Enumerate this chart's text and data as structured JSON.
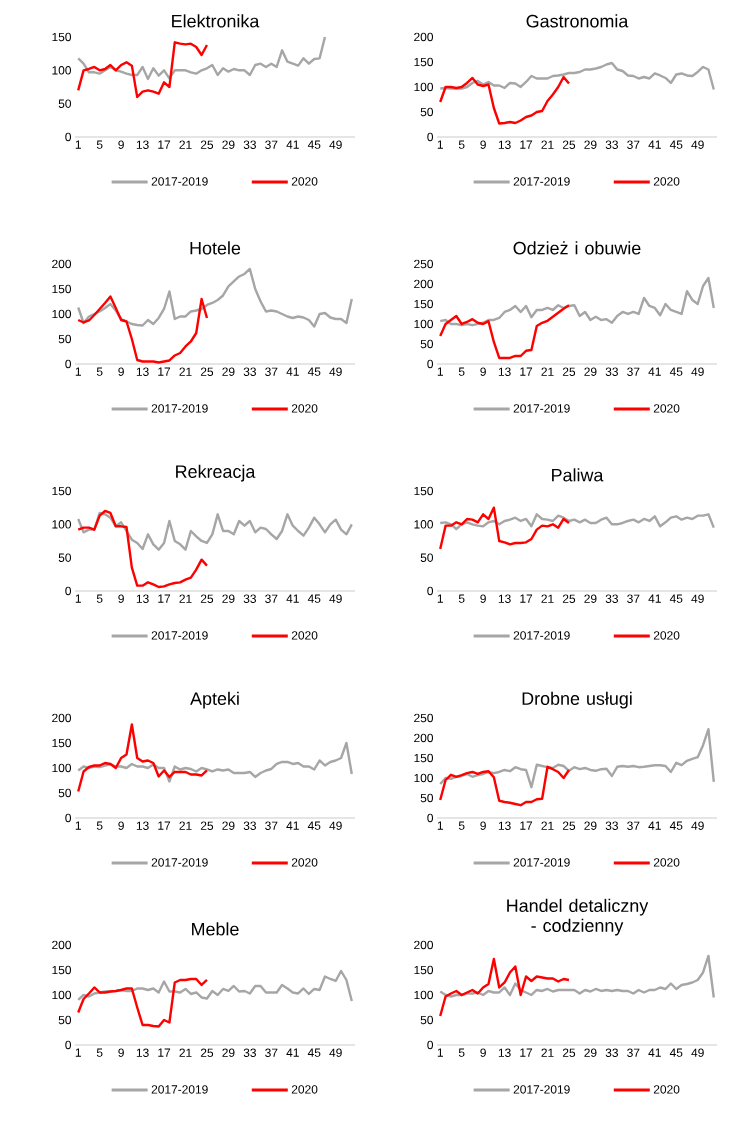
{
  "chart_data": [
    {
      "type": "line",
      "title": "Elektronika",
      "categories": [
        "1",
        null,
        null,
        null,
        "5",
        null,
        null,
        null,
        "9",
        null,
        null,
        null,
        "13",
        null,
        null,
        null,
        "17",
        null,
        null,
        null,
        "21",
        null,
        null,
        null,
        "25",
        null,
        null,
        null,
        "29",
        null,
        null,
        null,
        "33",
        null,
        null,
        null,
        "37",
        null,
        null,
        null,
        "41",
        null,
        null,
        null,
        "45",
        null,
        null,
        null,
        "49",
        null,
        null,
        null
      ],
      "ylim": [
        0,
        150
      ],
      "yticks": [
        0,
        50,
        100,
        150
      ],
      "legend": "bottom",
      "series": [
        {
          "name": "2017-2019",
          "color": "#a6a6a6",
          "values": [
            118,
            110,
            97,
            97,
            95,
            100,
            105,
            100,
            98,
            95,
            93,
            93,
            105,
            87,
            103,
            92,
            100,
            88,
            100,
            100,
            100,
            97,
            95,
            100,
            103,
            108,
            93,
            103,
            98,
            102,
            100,
            100,
            93,
            108,
            110,
            105,
            110,
            105,
            130,
            113,
            110,
            107,
            118,
            110,
            117,
            118,
            150,
            null,
            null,
            null,
            null,
            null
          ]
        },
        {
          "name": "2020",
          "color": "#ff0000",
          "values": [
            70,
            100,
            102,
            105,
            100,
            102,
            108,
            100,
            108,
            112,
            107,
            60,
            68,
            70,
            68,
            65,
            82,
            75,
            142,
            140,
            139,
            140,
            135,
            123,
            138,
            null,
            null,
            null,
            null,
            null,
            null,
            null,
            null,
            null,
            null,
            null,
            null,
            null,
            null,
            null,
            null,
            null,
            null,
            null,
            null,
            null,
            null,
            null,
            null,
            null,
            null,
            null
          ]
        }
      ]
    },
    {
      "type": "line",
      "title": "Gastronomia",
      "categories": [
        "1",
        null,
        null,
        null,
        "5",
        null,
        null,
        null,
        "9",
        null,
        null,
        null,
        "13",
        null,
        null,
        null,
        "17",
        null,
        null,
        null,
        "21",
        null,
        null,
        null,
        "25",
        null,
        null,
        null,
        "29",
        null,
        null,
        null,
        "33",
        null,
        null,
        null,
        "37",
        null,
        null,
        null,
        "41",
        null,
        null,
        null,
        "45",
        null,
        null,
        null,
        "49",
        null,
        null,
        null
      ],
      "ylim": [
        0,
        200
      ],
      "yticks": [
        0,
        50,
        100,
        150,
        200
      ],
      "legend": "bottom",
      "series": [
        {
          "name": "2017-2019",
          "color": "#a6a6a6",
          "values": [
            97,
            98,
            97,
            97,
            97,
            100,
            108,
            112,
            105,
            110,
            103,
            103,
            98,
            108,
            107,
            100,
            110,
            122,
            117,
            117,
            117,
            122,
            123,
            125,
            128,
            128,
            130,
            135,
            135,
            137,
            140,
            145,
            148,
            135,
            132,
            123,
            122,
            117,
            120,
            117,
            127,
            123,
            118,
            108,
            125,
            127,
            123,
            122,
            130,
            140,
            135,
            95
          ]
        },
        {
          "name": "2020",
          "color": "#ff0000",
          "values": [
            70,
            100,
            100,
            98,
            100,
            108,
            118,
            105,
            102,
            105,
            58,
            27,
            28,
            30,
            28,
            33,
            40,
            43,
            50,
            52,
            72,
            85,
            100,
            120,
            107,
            null,
            null,
            null,
            null,
            null,
            null,
            null,
            null,
            null,
            null,
            null,
            null,
            null,
            null,
            null,
            null,
            null,
            null,
            null,
            null,
            null,
            null,
            null,
            null,
            null,
            null,
            null
          ]
        }
      ]
    },
    {
      "type": "line",
      "title": "Hotele",
      "categories": [
        "1",
        null,
        null,
        null,
        "5",
        null,
        null,
        null,
        "9",
        null,
        null,
        null,
        "13",
        null,
        null,
        null,
        "17",
        null,
        null,
        null,
        "21",
        null,
        null,
        null,
        "25",
        null,
        null,
        null,
        "29",
        null,
        null,
        null,
        "33",
        null,
        null,
        null,
        "37",
        null,
        null,
        null,
        "41",
        null,
        null,
        null,
        "45",
        null,
        null,
        null,
        "49",
        null,
        null,
        null
      ],
      "ylim": [
        0,
        200
      ],
      "yticks": [
        0,
        50,
        100,
        150,
        200
      ],
      "legend": "bottom",
      "series": [
        {
          "name": "2017-2019",
          "color": "#a6a6a6",
          "values": [
            113,
            82,
            95,
            100,
            105,
            112,
            120,
            107,
            90,
            85,
            80,
            78,
            77,
            88,
            80,
            92,
            110,
            145,
            90,
            95,
            95,
            105,
            107,
            110,
            118,
            122,
            128,
            137,
            155,
            165,
            175,
            180,
            190,
            150,
            125,
            105,
            107,
            105,
            100,
            95,
            92,
            95,
            93,
            88,
            75,
            100,
            102,
            93,
            90,
            90,
            82,
            130
          ]
        },
        {
          "name": "2020",
          "color": "#ff0000",
          "values": [
            88,
            83,
            87,
            98,
            110,
            122,
            135,
            112,
            88,
            85,
            50,
            8,
            5,
            5,
            5,
            3,
            5,
            7,
            17,
            22,
            35,
            45,
            62,
            130,
            92,
            null,
            null,
            null,
            null,
            null,
            null,
            null,
            null,
            null,
            null,
            null,
            null,
            null,
            null,
            null,
            null,
            null,
            null,
            null,
            null,
            null,
            null,
            null,
            null,
            null,
            null,
            null
          ]
        }
      ]
    },
    {
      "type": "line",
      "title": "Odzież i obuwie",
      "categories": [
        "1",
        null,
        null,
        null,
        "5",
        null,
        null,
        null,
        "9",
        null,
        null,
        null,
        "13",
        null,
        null,
        null,
        "17",
        null,
        null,
        null,
        "21",
        null,
        null,
        null,
        "25",
        null,
        null,
        null,
        "29",
        null,
        null,
        null,
        "33",
        null,
        null,
        null,
        "37",
        null,
        null,
        null,
        "41",
        null,
        null,
        null,
        "45",
        null,
        null,
        null,
        "49",
        null,
        null,
        null
      ],
      "ylim": [
        0,
        250
      ],
      "yticks": [
        0,
        50,
        100,
        150,
        200,
        250
      ],
      "legend": "bottom",
      "series": [
        {
          "name": "2017-2019",
          "color": "#a6a6a6",
          "values": [
            107,
            110,
            100,
            100,
            97,
            100,
            97,
            100,
            103,
            110,
            110,
            115,
            130,
            135,
            145,
            130,
            145,
            117,
            135,
            135,
            140,
            135,
            147,
            140,
            145,
            147,
            120,
            130,
            110,
            118,
            110,
            112,
            103,
            120,
            130,
            125,
            130,
            125,
            165,
            145,
            140,
            122,
            150,
            135,
            130,
            125,
            182,
            160,
            150,
            195,
            215,
            140
          ]
        },
        {
          "name": "2020",
          "color": "#ff0000",
          "values": [
            70,
            100,
            110,
            120,
            100,
            105,
            112,
            103,
            100,
            107,
            55,
            15,
            15,
            15,
            20,
            20,
            33,
            35,
            95,
            103,
            108,
            118,
            128,
            138,
            147,
            null,
            null,
            null,
            null,
            null,
            null,
            null,
            null,
            null,
            null,
            null,
            null,
            null,
            null,
            null,
            null,
            null,
            null,
            null,
            null,
            null,
            null,
            null,
            null,
            null,
            null,
            null
          ]
        }
      ]
    },
    {
      "type": "line",
      "title": "Rekreacja",
      "categories": [
        "1",
        null,
        null,
        null,
        "5",
        null,
        null,
        null,
        "9",
        null,
        null,
        null,
        "13",
        null,
        null,
        null,
        "17",
        null,
        null,
        null,
        "21",
        null,
        null,
        null,
        "25",
        null,
        null,
        null,
        "29",
        null,
        null,
        null,
        "33",
        null,
        null,
        null,
        "37",
        null,
        null,
        null,
        "41",
        null,
        null,
        null,
        "45",
        null,
        null,
        null,
        "49",
        null,
        null,
        null
      ],
      "ylim": [
        0,
        150
      ],
      "yticks": [
        0,
        50,
        100,
        150
      ],
      "legend": "bottom",
      "series": [
        {
          "name": "2017-2019",
          "color": "#a6a6a6",
          "values": [
            108,
            88,
            92,
            92,
            117,
            115,
            110,
            97,
            103,
            90,
            77,
            72,
            63,
            85,
            70,
            62,
            72,
            105,
            75,
            70,
            62,
            90,
            82,
            75,
            72,
            85,
            115,
            90,
            90,
            85,
            105,
            98,
            105,
            88,
            95,
            93,
            85,
            78,
            90,
            115,
            98,
            90,
            83,
            95,
            110,
            100,
            88,
            100,
            107,
            92,
            85,
            100
          ]
        },
        {
          "name": "2020",
          "color": "#ff0000",
          "values": [
            92,
            95,
            95,
            92,
            113,
            120,
            117,
            97,
            97,
            96,
            35,
            8,
            8,
            13,
            10,
            6,
            7,
            10,
            12,
            13,
            17,
            20,
            32,
            47,
            38,
            null,
            null,
            null,
            null,
            null,
            null,
            null,
            null,
            null,
            null,
            null,
            null,
            null,
            null,
            null,
            null,
            null,
            null,
            null,
            null,
            null,
            null,
            null,
            null,
            null,
            null,
            null
          ]
        }
      ]
    },
    {
      "type": "line",
      "title": "Paliwa",
      "categories": [
        "1",
        null,
        null,
        null,
        "5",
        null,
        null,
        null,
        "9",
        null,
        null,
        null,
        "13",
        null,
        null,
        null,
        "17",
        null,
        null,
        null,
        "21",
        null,
        null,
        null,
        "25",
        null,
        null,
        null,
        "29",
        null,
        null,
        null,
        "33",
        null,
        null,
        null,
        "37",
        null,
        null,
        null,
        "41",
        null,
        null,
        null,
        "45",
        null,
        null,
        null,
        "49",
        null,
        null,
        null
      ],
      "ylim": [
        0,
        150
      ],
      "yticks": [
        0,
        50,
        100,
        150
      ],
      "legend": "bottom",
      "series": [
        {
          "name": "2017-2019",
          "color": "#a6a6a6",
          "values": [
            102,
            103,
            100,
            93,
            100,
            103,
            100,
            98,
            97,
            103,
            105,
            100,
            105,
            107,
            110,
            105,
            108,
            97,
            115,
            108,
            107,
            105,
            113,
            110,
            105,
            107,
            103,
            107,
            102,
            102,
            107,
            110,
            100,
            100,
            102,
            105,
            107,
            103,
            108,
            105,
            112,
            97,
            103,
            110,
            112,
            107,
            110,
            108,
            113,
            113,
            115,
            95
          ]
        },
        {
          "name": "2020",
          "color": "#ff0000",
          "values": [
            63,
            98,
            98,
            103,
            100,
            108,
            107,
            103,
            115,
            108,
            125,
            75,
            73,
            70,
            72,
            72,
            73,
            78,
            92,
            98,
            97,
            100,
            95,
            108,
            102,
            null,
            null,
            null,
            null,
            null,
            null,
            null,
            null,
            null,
            null,
            null,
            null,
            null,
            null,
            null,
            null,
            null,
            null,
            null,
            null,
            null,
            null,
            null,
            null,
            null,
            null,
            null
          ]
        }
      ]
    },
    {
      "type": "line",
      "title": "Apteki",
      "categories": [
        "1",
        null,
        null,
        null,
        "5",
        null,
        null,
        null,
        "9",
        null,
        null,
        null,
        "13",
        null,
        null,
        null,
        "17",
        null,
        null,
        null,
        "21",
        null,
        null,
        null,
        "25",
        null,
        null,
        null,
        "29",
        null,
        null,
        null,
        "33",
        null,
        null,
        null,
        "37",
        null,
        null,
        null,
        "41",
        null,
        null,
        null,
        "45",
        null,
        null,
        null,
        "49",
        null,
        null,
        null
      ],
      "ylim": [
        0,
        200
      ],
      "yticks": [
        0,
        50,
        100,
        150,
        200
      ],
      "legend": "bottom",
      "series": [
        {
          "name": "2017-2019",
          "color": "#a6a6a6",
          "values": [
            95,
            103,
            100,
            103,
            102,
            105,
            108,
            103,
            103,
            100,
            108,
            103,
            103,
            100,
            107,
            100,
            100,
            73,
            103,
            97,
            100,
            98,
            93,
            100,
            97,
            93,
            97,
            95,
            97,
            90,
            90,
            90,
            92,
            82,
            90,
            95,
            98,
            108,
            112,
            112,
            108,
            110,
            103,
            103,
            97,
            115,
            105,
            112,
            115,
            120,
            150,
            88
          ]
        },
        {
          "name": "2020",
          "color": "#ff0000",
          "values": [
            53,
            93,
            102,
            105,
            105,
            110,
            108,
            100,
            120,
            127,
            187,
            120,
            113,
            115,
            110,
            83,
            95,
            82,
            92,
            92,
            92,
            87,
            87,
            85,
            95,
            null,
            null,
            null,
            null,
            null,
            null,
            null,
            null,
            null,
            null,
            null,
            null,
            null,
            null,
            null,
            null,
            null,
            null,
            null,
            null,
            null,
            null,
            null,
            null,
            null,
            null,
            null
          ]
        }
      ]
    },
    {
      "type": "line",
      "title": "Drobne usługi",
      "categories": [
        "1",
        null,
        null,
        null,
        "5",
        null,
        null,
        null,
        "9",
        null,
        null,
        null,
        "13",
        null,
        null,
        null,
        "17",
        null,
        null,
        null,
        "21",
        null,
        null,
        null,
        "25",
        null,
        null,
        null,
        "29",
        null,
        null,
        null,
        "33",
        null,
        null,
        null,
        "37",
        null,
        null,
        null,
        "41",
        null,
        null,
        null,
        "45",
        null,
        null,
        null,
        "49",
        null,
        null,
        null
      ],
      "ylim": [
        0,
        250
      ],
      "yticks": [
        0,
        50,
        100,
        150,
        200,
        250
      ],
      "legend": "bottom",
      "series": [
        {
          "name": "2017-2019",
          "color": "#a6a6a6",
          "values": [
            85,
            100,
            98,
            103,
            105,
            110,
            103,
            107,
            110,
            115,
            112,
            115,
            120,
            117,
            127,
            122,
            120,
            77,
            133,
            130,
            127,
            125,
            133,
            130,
            118,
            127,
            122,
            125,
            120,
            118,
            122,
            123,
            105,
            128,
            130,
            128,
            130,
            127,
            128,
            130,
            132,
            132,
            130,
            115,
            138,
            132,
            143,
            148,
            152,
            182,
            222,
            90
          ]
        },
        {
          "name": "2020",
          "color": "#ff0000",
          "values": [
            45,
            95,
            108,
            103,
            107,
            112,
            115,
            110,
            115,
            117,
            102,
            43,
            40,
            38,
            35,
            32,
            40,
            40,
            47,
            48,
            128,
            122,
            115,
            100,
            120,
            null,
            null,
            null,
            null,
            null,
            null,
            null,
            null,
            null,
            null,
            null,
            null,
            null,
            null,
            null,
            null,
            null,
            null,
            null,
            null,
            null,
            null,
            null,
            null,
            null,
            null,
            null
          ]
        }
      ]
    },
    {
      "type": "line",
      "title": "Meble",
      "categories": [
        "1",
        null,
        null,
        null,
        "5",
        null,
        null,
        null,
        "9",
        null,
        null,
        null,
        "13",
        null,
        null,
        null,
        "17",
        null,
        null,
        null,
        "21",
        null,
        null,
        null,
        "25",
        null,
        null,
        null,
        "29",
        null,
        null,
        null,
        "33",
        null,
        null,
        null,
        "37",
        null,
        null,
        null,
        "41",
        null,
        null,
        null,
        "45",
        null,
        null,
        null,
        "49",
        null,
        null,
        null
      ],
      "ylim": [
        0,
        200
      ],
      "yticks": [
        0,
        50,
        100,
        150,
        200
      ],
      "legend": "bottom",
      "series": [
        {
          "name": "2017-2019",
          "color": "#a6a6a6",
          "values": [
            90,
            100,
            97,
            103,
            105,
            107,
            107,
            108,
            110,
            108,
            108,
            113,
            113,
            110,
            113,
            105,
            127,
            107,
            107,
            105,
            112,
            102,
            105,
            95,
            93,
            108,
            100,
            112,
            108,
            118,
            107,
            108,
            103,
            118,
            118,
            105,
            105,
            105,
            120,
            113,
            105,
            103,
            113,
            102,
            112,
            110,
            137,
            132,
            128,
            148,
            130,
            88
          ]
        },
        {
          "name": "2020",
          "color": "#ff0000",
          "values": [
            65,
            92,
            103,
            115,
            105,
            105,
            107,
            108,
            110,
            113,
            113,
            75,
            40,
            40,
            38,
            37,
            50,
            45,
            125,
            130,
            130,
            132,
            132,
            120,
            130,
            null,
            null,
            null,
            null,
            null,
            null,
            null,
            null,
            null,
            null,
            null,
            null,
            null,
            null,
            null,
            null,
            null,
            null,
            null,
            null,
            null,
            null,
            null,
            null,
            null,
            null,
            null
          ]
        }
      ]
    },
    {
      "type": "line",
      "title": "Handel detaliczny - codzienny",
      "categories": [
        "1",
        null,
        null,
        null,
        "5",
        null,
        null,
        null,
        "9",
        null,
        null,
        null,
        "13",
        null,
        null,
        null,
        "17",
        null,
        null,
        null,
        "21",
        null,
        null,
        null,
        "25",
        null,
        null,
        null,
        "29",
        null,
        null,
        null,
        "33",
        null,
        null,
        null,
        "37",
        null,
        null,
        null,
        "41",
        null,
        null,
        null,
        "45",
        null,
        null,
        null,
        "49",
        null,
        null,
        null
      ],
      "ylim": [
        0,
        200
      ],
      "yticks": [
        0,
        50,
        100,
        150,
        200
      ],
      "legend": "bottom",
      "series": [
        {
          "name": "2017-2019",
          "color": "#a6a6a6",
          "values": [
            107,
            100,
            97,
            100,
            100,
            103,
            103,
            105,
            100,
            108,
            105,
            105,
            115,
            100,
            123,
            110,
            105,
            100,
            110,
            108,
            112,
            107,
            110,
            110,
            110,
            110,
            103,
            110,
            107,
            112,
            108,
            110,
            108,
            110,
            108,
            108,
            103,
            110,
            105,
            110,
            110,
            115,
            112,
            123,
            112,
            120,
            122,
            125,
            130,
            145,
            178,
            95
          ]
        },
        {
          "name": "2020",
          "color": "#ff0000",
          "values": [
            58,
            97,
            103,
            108,
            100,
            105,
            110,
            103,
            115,
            122,
            172,
            115,
            125,
            145,
            157,
            100,
            137,
            128,
            137,
            135,
            133,
            133,
            127,
            132,
            130,
            null,
            null,
            null,
            null,
            null,
            null,
            null,
            null,
            null,
            null,
            null,
            null,
            null,
            null,
            null,
            null,
            null,
            null,
            null,
            null,
            null,
            null,
            null,
            null,
            null,
            null,
            null
          ]
        }
      ]
    }
  ]
}
